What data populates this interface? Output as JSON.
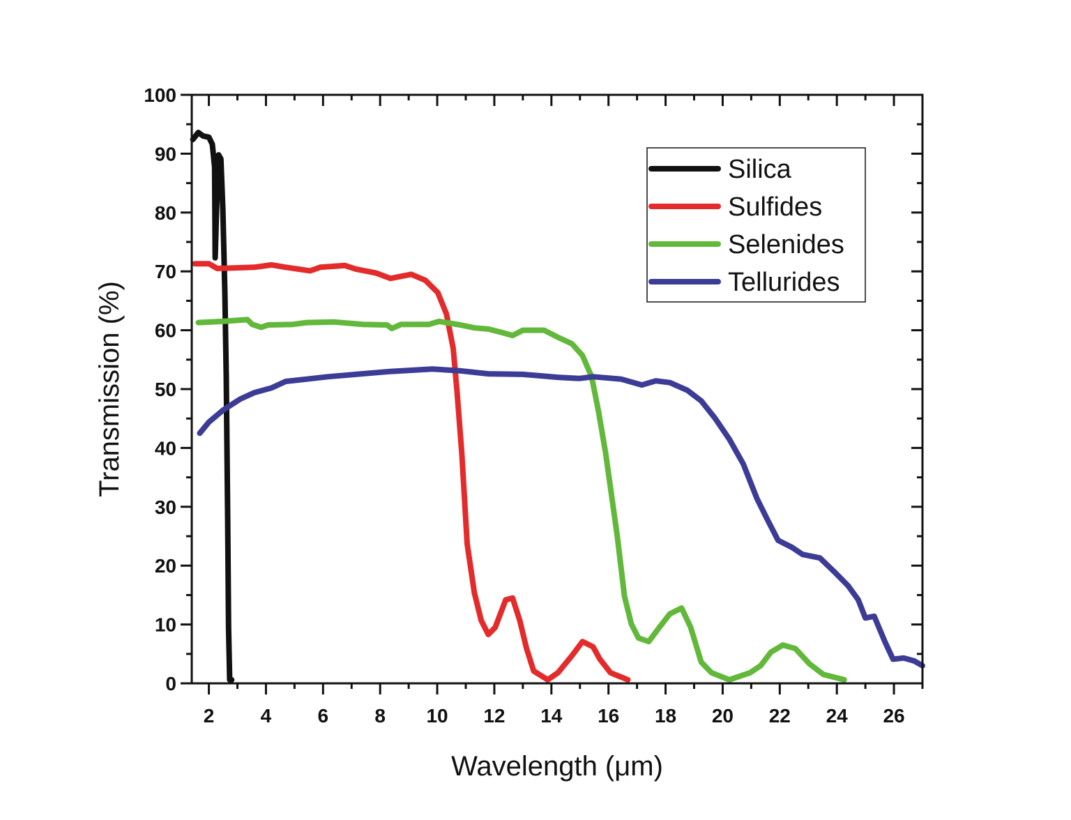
{
  "chart_data": {
    "type": "line",
    "title": "",
    "xlabel": "Wavelength (μm)",
    "ylabel": "Transmission (%)",
    "xlim": [
      1.4,
      27
    ],
    "ylim": [
      0,
      100
    ],
    "xticks": [
      2,
      4,
      6,
      8,
      10,
      12,
      14,
      16,
      18,
      20,
      22,
      24,
      26
    ],
    "yticks": [
      0,
      10,
      20,
      30,
      40,
      50,
      60,
      70,
      80,
      90,
      100
    ],
    "grid": false,
    "legend_position": "top-right",
    "series": [
      {
        "name": "Silica",
        "color": "#111111",
        "x": [
          1.44,
          1.63,
          1.8,
          2.0,
          2.12,
          2.2,
          2.22,
          2.27,
          2.34,
          2.42,
          2.49,
          2.56,
          2.61,
          2.66,
          2.69,
          2.73,
          2.8
        ],
        "y": [
          92.4,
          93.6,
          93.0,
          92.8,
          91.6,
          87.7,
          72.3,
          80.6,
          89.8,
          89.1,
          80.6,
          66.4,
          52.1,
          27.3,
          9.5,
          0.6,
          0.6
        ]
      },
      {
        "name": "Sulfides",
        "color": "#e32b2b",
        "x": [
          1.51,
          2.0,
          2.29,
          2.98,
          3.59,
          4.2,
          4.69,
          5.55,
          5.9,
          6.77,
          7.14,
          7.87,
          8.36,
          9.09,
          9.58,
          10.02,
          10.32,
          10.56,
          10.69,
          10.86,
          11.05,
          11.3,
          11.54,
          11.79,
          12.03,
          12.4,
          12.64,
          12.89,
          13.13,
          13.38,
          13.87,
          14.23,
          14.72,
          15.09,
          15.46,
          15.7,
          16.07,
          16.68
        ],
        "y": [
          71.3,
          71.3,
          70.5,
          70.6,
          70.7,
          71.1,
          70.7,
          70.1,
          70.7,
          71.0,
          70.4,
          69.7,
          68.8,
          69.5,
          68.5,
          66.4,
          62.8,
          56.9,
          49.8,
          39.1,
          23.7,
          15.4,
          10.7,
          8.3,
          9.5,
          14.2,
          14.5,
          10.7,
          5.9,
          2.1,
          0.6,
          1.8,
          4.7,
          7.1,
          6.2,
          4.1,
          1.8,
          0.6
        ]
      },
      {
        "name": "Selenides",
        "color": "#62b83a",
        "x": [
          1.63,
          2.49,
          3.35,
          3.52,
          3.83,
          4.08,
          4.94,
          5.43,
          6.4,
          7.38,
          8.24,
          8.41,
          8.73,
          9.71,
          10.07,
          10.81,
          11.3,
          11.79,
          12.28,
          12.64,
          13.0,
          13.74,
          14.23,
          14.72,
          15.09,
          15.41,
          15.65,
          15.9,
          16.07,
          16.31,
          16.56,
          16.8,
          17.05,
          17.41,
          17.78,
          18.15,
          18.56,
          18.88,
          19.25,
          19.61,
          20.23,
          20.96,
          21.33,
          21.69,
          22.11,
          22.55,
          23.04,
          23.53,
          24.26
        ],
        "y": [
          61.3,
          61.5,
          61.8,
          61.0,
          60.5,
          60.9,
          61.0,
          61.3,
          61.4,
          61.0,
          60.9,
          60.3,
          61.0,
          61.0,
          61.5,
          60.9,
          60.4,
          60.2,
          59.6,
          59.1,
          60.0,
          60.0,
          58.8,
          57.7,
          55.7,
          52.1,
          46.2,
          39.1,
          33.2,
          24.9,
          14.8,
          10.1,
          7.7,
          7.1,
          9.5,
          11.8,
          12.8,
          9.5,
          3.6,
          1.8,
          0.6,
          1.8,
          3.0,
          5.3,
          6.5,
          5.9,
          3.3,
          1.5,
          0.6
        ]
      },
      {
        "name": "Tellurides",
        "color": "#3c3c96",
        "x": [
          1.68,
          2.0,
          2.49,
          3.1,
          3.59,
          4.2,
          4.69,
          5.43,
          6.16,
          7.14,
          8.36,
          9.83,
          10.81,
          11.79,
          13.0,
          14.23,
          14.97,
          15.46,
          16.44,
          17.17,
          17.66,
          18.15,
          18.76,
          19.25,
          19.74,
          20.23,
          20.72,
          21.2,
          21.57,
          21.94,
          22.43,
          22.8,
          23.41,
          23.9,
          24.39,
          24.75,
          25.0,
          25.31,
          25.68,
          25.97,
          26.34,
          26.71,
          27.0
        ],
        "y": [
          42.5,
          44.4,
          46.4,
          48.3,
          49.4,
          50.2,
          51.3,
          51.7,
          52.1,
          52.5,
          53.0,
          53.4,
          53.1,
          52.6,
          52.5,
          52.0,
          51.8,
          52.1,
          51.7,
          50.7,
          51.4,
          51.1,
          49.8,
          48.0,
          45.0,
          41.5,
          37.3,
          31.4,
          27.8,
          24.3,
          23.1,
          21.9,
          21.3,
          19.0,
          16.6,
          14.2,
          11.1,
          11.4,
          7.1,
          4.1,
          4.3,
          3.8,
          3.0
        ]
      }
    ]
  }
}
